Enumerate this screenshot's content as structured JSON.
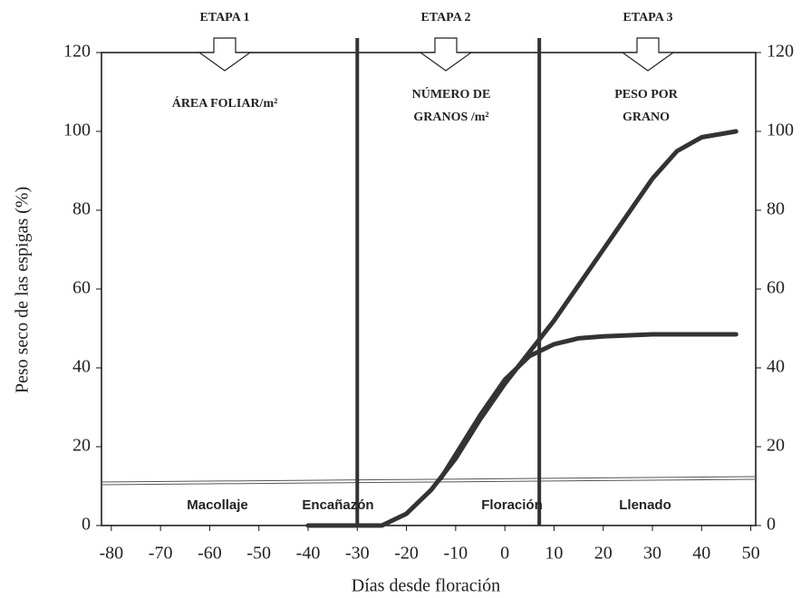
{
  "chart_data": {
    "type": "line",
    "x_label": "Días desde floración",
    "y_label": "Peso seco de las espigas (%)",
    "xlim": [
      -82,
      51
    ],
    "xticks": [
      -80,
      -70,
      -60,
      -50,
      -40,
      -30,
      -20,
      -10,
      0,
      10,
      20,
      30,
      40,
      50
    ],
    "ylim": [
      0,
      120
    ],
    "yticks": [
      0,
      20,
      40,
      60,
      80,
      100,
      120
    ],
    "y2lim": [
      0,
      120
    ],
    "y2ticks": [
      0,
      20,
      40,
      60,
      80,
      100,
      120
    ],
    "vlines": [
      -30,
      7
    ],
    "series": [
      {
        "color": "#333333",
        "x": [
          -40,
          -25,
          -20,
          -15,
          -10,
          -5,
          0,
          5,
          10,
          15,
          20,
          25,
          30,
          35,
          40,
          47
        ],
        "values": [
          0,
          0,
          3,
          9,
          17,
          27,
          36,
          44,
          52,
          61,
          70,
          79,
          88,
          95,
          98.5,
          100
        ]
      },
      {
        "color": "#333333",
        "x": [
          -13,
          -10,
          -5,
          0,
          5,
          10,
          15,
          20,
          30,
          40,
          47
        ],
        "values": [
          12,
          18,
          28,
          37,
          43,
          46,
          47.5,
          48,
          48.5,
          48.5,
          48.5
        ]
      }
    ],
    "stages": [
      "ETAPA 1",
      "ETAPA 2",
      "ETAPA 3"
    ],
    "components": [
      [
        "ÁREA FOLIAR/m²"
      ],
      [
        "NÚMERO DE",
        "GRANOS /m²"
      ],
      [
        "PESO POR",
        "GRANO"
      ]
    ],
    "phases": [
      "Macollaje",
      "Encañazón",
      "Floración",
      "Llenado"
    ]
  }
}
